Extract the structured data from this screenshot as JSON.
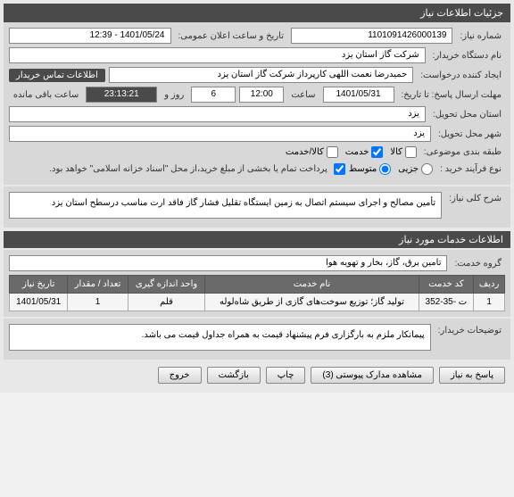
{
  "header": {
    "title": "جزئیات اطلاعات نیاز"
  },
  "fields": {
    "request_number_label": "شماره نیاز:",
    "request_number": "1101091426000139",
    "announce_label": "تاریخ و ساعت اعلان عمومی:",
    "announce_value": "1401/05/24 - 12:39",
    "buyer_org_label": "نام دستگاه خریدار:",
    "buyer_org": "شرکت گاز استان یزد",
    "requester_label": "ایجاد کننده درخواست:",
    "requester": "حمیدرضا نعمت اللهی کارپرداز شرکت گاز استان یزد",
    "contact_badge": "اطلاعات تماس خریدار",
    "deadline_label": "مهلت ارسال پاسخ: تا تاریخ:",
    "deadline_date": "1401/05/31",
    "hour_label": "ساعت",
    "deadline_hour": "12:00",
    "day_label": "روز و",
    "deadline_days": "6",
    "remaining_label": "ساعت باقی مانده",
    "remaining_time": "23:13:21",
    "province_label": "استان محل تحویل:",
    "province": "یزد",
    "city_label": "شهر محل تحویل:",
    "city": "یزد",
    "subject_group_label": "طبقه بندی موضوعی:",
    "kala": "کالا",
    "khedmat": "خدمت",
    "kala_khedmat": "کالا/خدمت",
    "process_label": "نوع فرآیند خرید :",
    "jozei": "جزیی",
    "motavaset": "متوسط",
    "payment_note": "پرداخت تمام یا بخشی از مبلغ خرید،از محل \"اسناد خزانه اسلامی\" خواهد بود.",
    "desc_label": "شرح کلی نیاز:",
    "desc_value": "تأمین مصالح و اجرای سیستم اتصال به زمین ایستگاه تقلیل فشار گاز فاقد ارت مناسب درسطح استان یزد",
    "services_title": "اطلاعات خدمات مورد نیاز",
    "service_group_label": "گروه خدمت:",
    "service_group": "تامین برق، گاز، بخار و تهویه هوا",
    "buyer_notes_label": "توضیحات خریدار:",
    "buyer_notes": "پیمانکار ملزم به بارگزاری فرم پیشنهاد قیمت به همراه جداول قیمت می باشد."
  },
  "table": {
    "headers": {
      "row": "ردیف",
      "code": "کد خدمت",
      "name": "نام خدمت",
      "unit": "واحد اندازه گیری",
      "qty": "تعداد / مقدار",
      "date": "تاریخ نیاز"
    },
    "rows": [
      {
        "row": "1",
        "code": "ت -35-352",
        "name": "تولید گاز؛ توزیع سوخت‌های گازی از طریق شاه‌لوله",
        "unit": "قلم",
        "qty": "1",
        "date": "1401/05/31"
      }
    ]
  },
  "buttons": {
    "respond": "پاسخ به نیاز",
    "attachments": "مشاهده مدارک پیوستی (3)",
    "print": "چاپ",
    "back": "بازگشت",
    "exit": "خروج"
  }
}
